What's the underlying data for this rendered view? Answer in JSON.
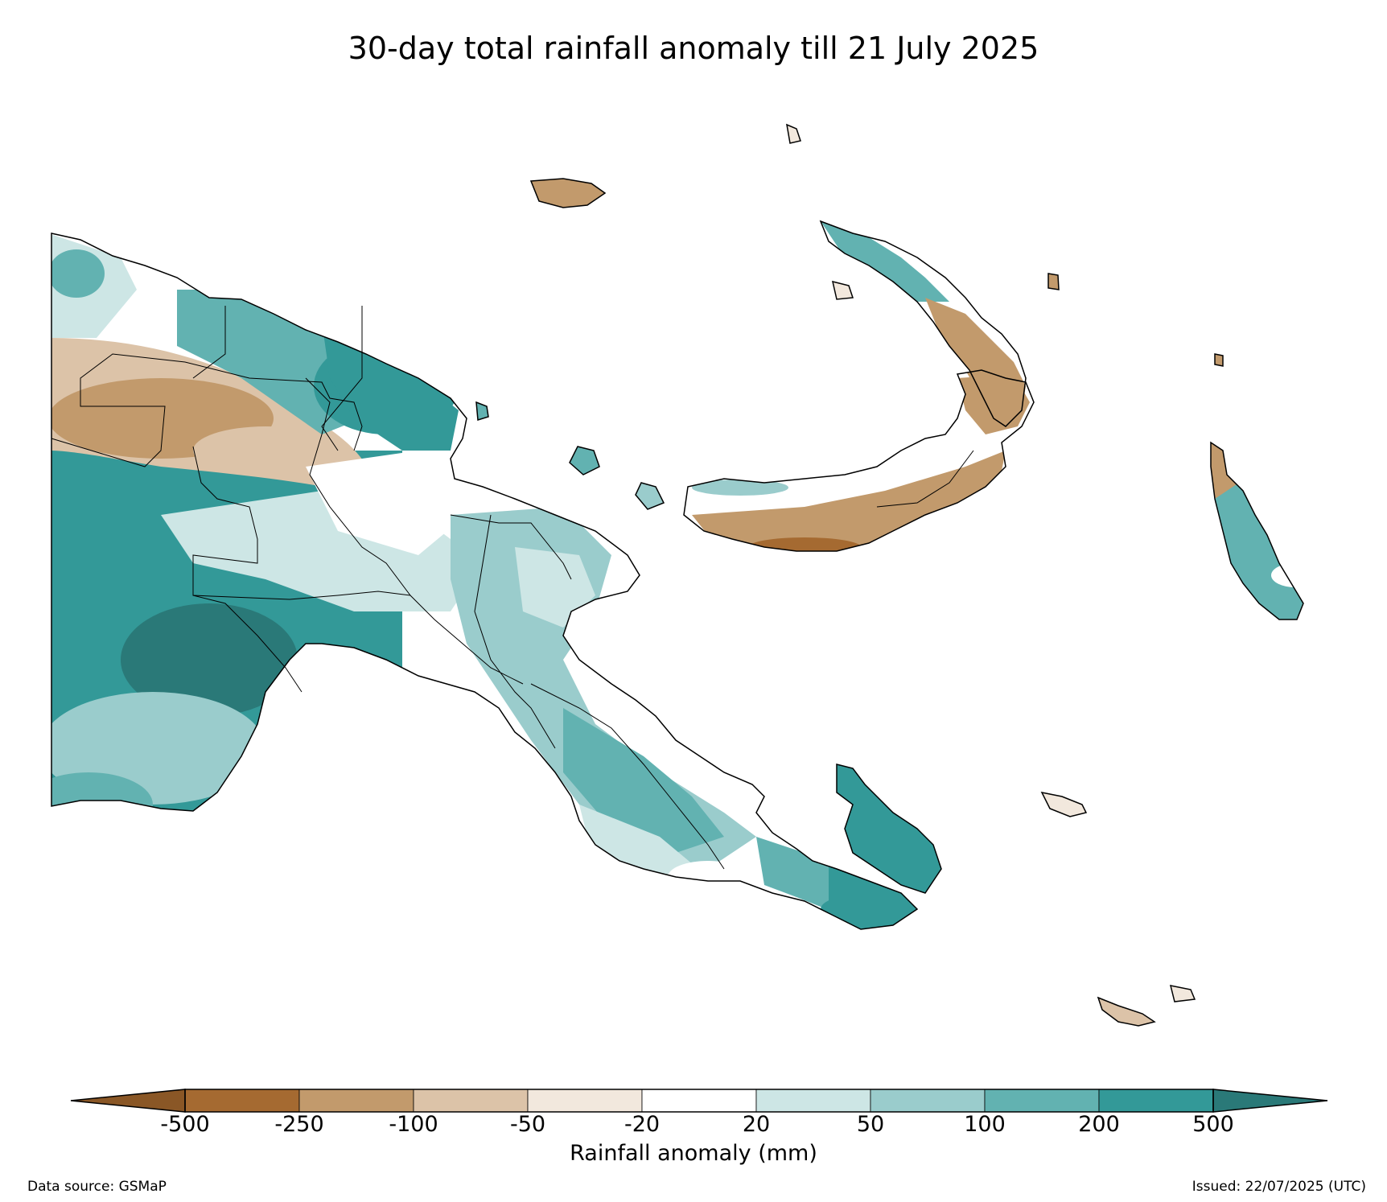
{
  "title": "30-day total rainfall anomaly till 21 July 2025",
  "colorbar": {
    "label": "Rainfall anomaly (mm)",
    "ticks": [
      "-500",
      "-250",
      "-100",
      "-50",
      "-20",
      "20",
      "50",
      "100",
      "200",
      "500"
    ],
    "colors": [
      "#a56a31",
      "#c29a6c",
      "#dcc3a8",
      "#f2e8dd",
      "#ffffff",
      "#cde6e5",
      "#9acccc",
      "#62b2b1",
      "#339998",
      "#2a7978"
    ],
    "extend_low_color": "#8a5726",
    "extend_high_color": "#2a7978"
  },
  "footer": {
    "source": "Data source: GSMaP",
    "issued": "Issued: 22/07/2025 (UTC)"
  }
}
